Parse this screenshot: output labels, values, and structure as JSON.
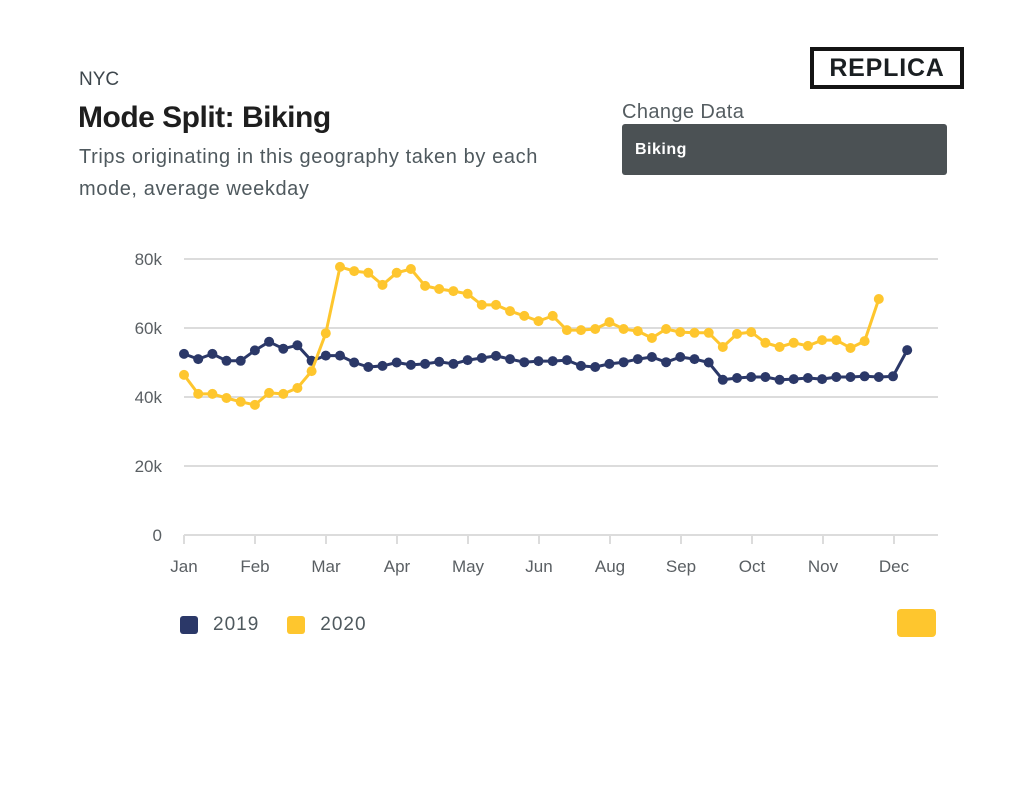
{
  "header": {
    "geography": "NYC",
    "title": "Mode Split: Biking",
    "subtitle": "Trips originating in this geography taken by each mode, average weekday",
    "logo": "REPLICA"
  },
  "controls": {
    "change_data_label": "Change Data",
    "selected_mode": "Biking"
  },
  "colors": {
    "series_2019": "#2b3868",
    "series_2020": "#fec62e",
    "grid": "#dcdcdc",
    "select_bg": "#4b5154"
  },
  "legend": [
    {
      "label": "2019",
      "color": "#2b3868"
    },
    {
      "label": "2020",
      "color": "#fec62e"
    }
  ],
  "chart_data": {
    "type": "line",
    "title": "Mode Split: Biking",
    "xlabel": "",
    "ylabel": "",
    "ylim": [
      0,
      80000
    ],
    "yticks": [
      0,
      20000,
      40000,
      60000,
      80000
    ],
    "ytick_labels": [
      "0",
      "20k",
      "40k",
      "60k",
      "80k"
    ],
    "xtick_labels": [
      "Jan",
      "Feb",
      "Mar",
      "Apr",
      "May",
      "Jun",
      "Aug",
      "Sep",
      "Oct",
      "Nov",
      "Dec"
    ],
    "x_unit": "week",
    "x_range_weeks": [
      0,
      53
    ],
    "grid": true,
    "legend_position": "bottom-left",
    "series": [
      {
        "name": "2019",
        "color": "#2b3868",
        "values": [
          52500,
          51000,
          52500,
          50500,
          50500,
          53500,
          56000,
          54000,
          55000,
          50500,
          52000,
          52000,
          50000,
          48700,
          49000,
          50000,
          49300,
          49600,
          50200,
          49600,
          50700,
          51300,
          51900,
          51000,
          50100,
          50400,
          50400,
          50700,
          49000,
          48700,
          49600,
          50100,
          51000,
          51600,
          50100,
          51600,
          51000,
          50000,
          45000,
          45500,
          45800,
          45800,
          45000,
          45200,
          45500,
          45200,
          45800,
          45800,
          46000,
          45800,
          46000,
          53600
        ]
      },
      {
        "name": "2020",
        "color": "#fec62e",
        "values": [
          46400,
          40900,
          40900,
          39700,
          38600,
          37700,
          41200,
          40900,
          42600,
          47500,
          58500,
          77700,
          76500,
          76000,
          72500,
          76000,
          77100,
          72200,
          71300,
          70700,
          69900,
          66700,
          66700,
          64900,
          63500,
          62000,
          63500,
          59400,
          59400,
          59700,
          61700,
          59700,
          59100,
          57100,
          59700,
          58800,
          58600,
          58600,
          54500,
          58300,
          58800,
          55700,
          54500,
          55700,
          54800,
          56500,
          56500,
          54200,
          56200,
          68400
        ]
      }
    ]
  }
}
